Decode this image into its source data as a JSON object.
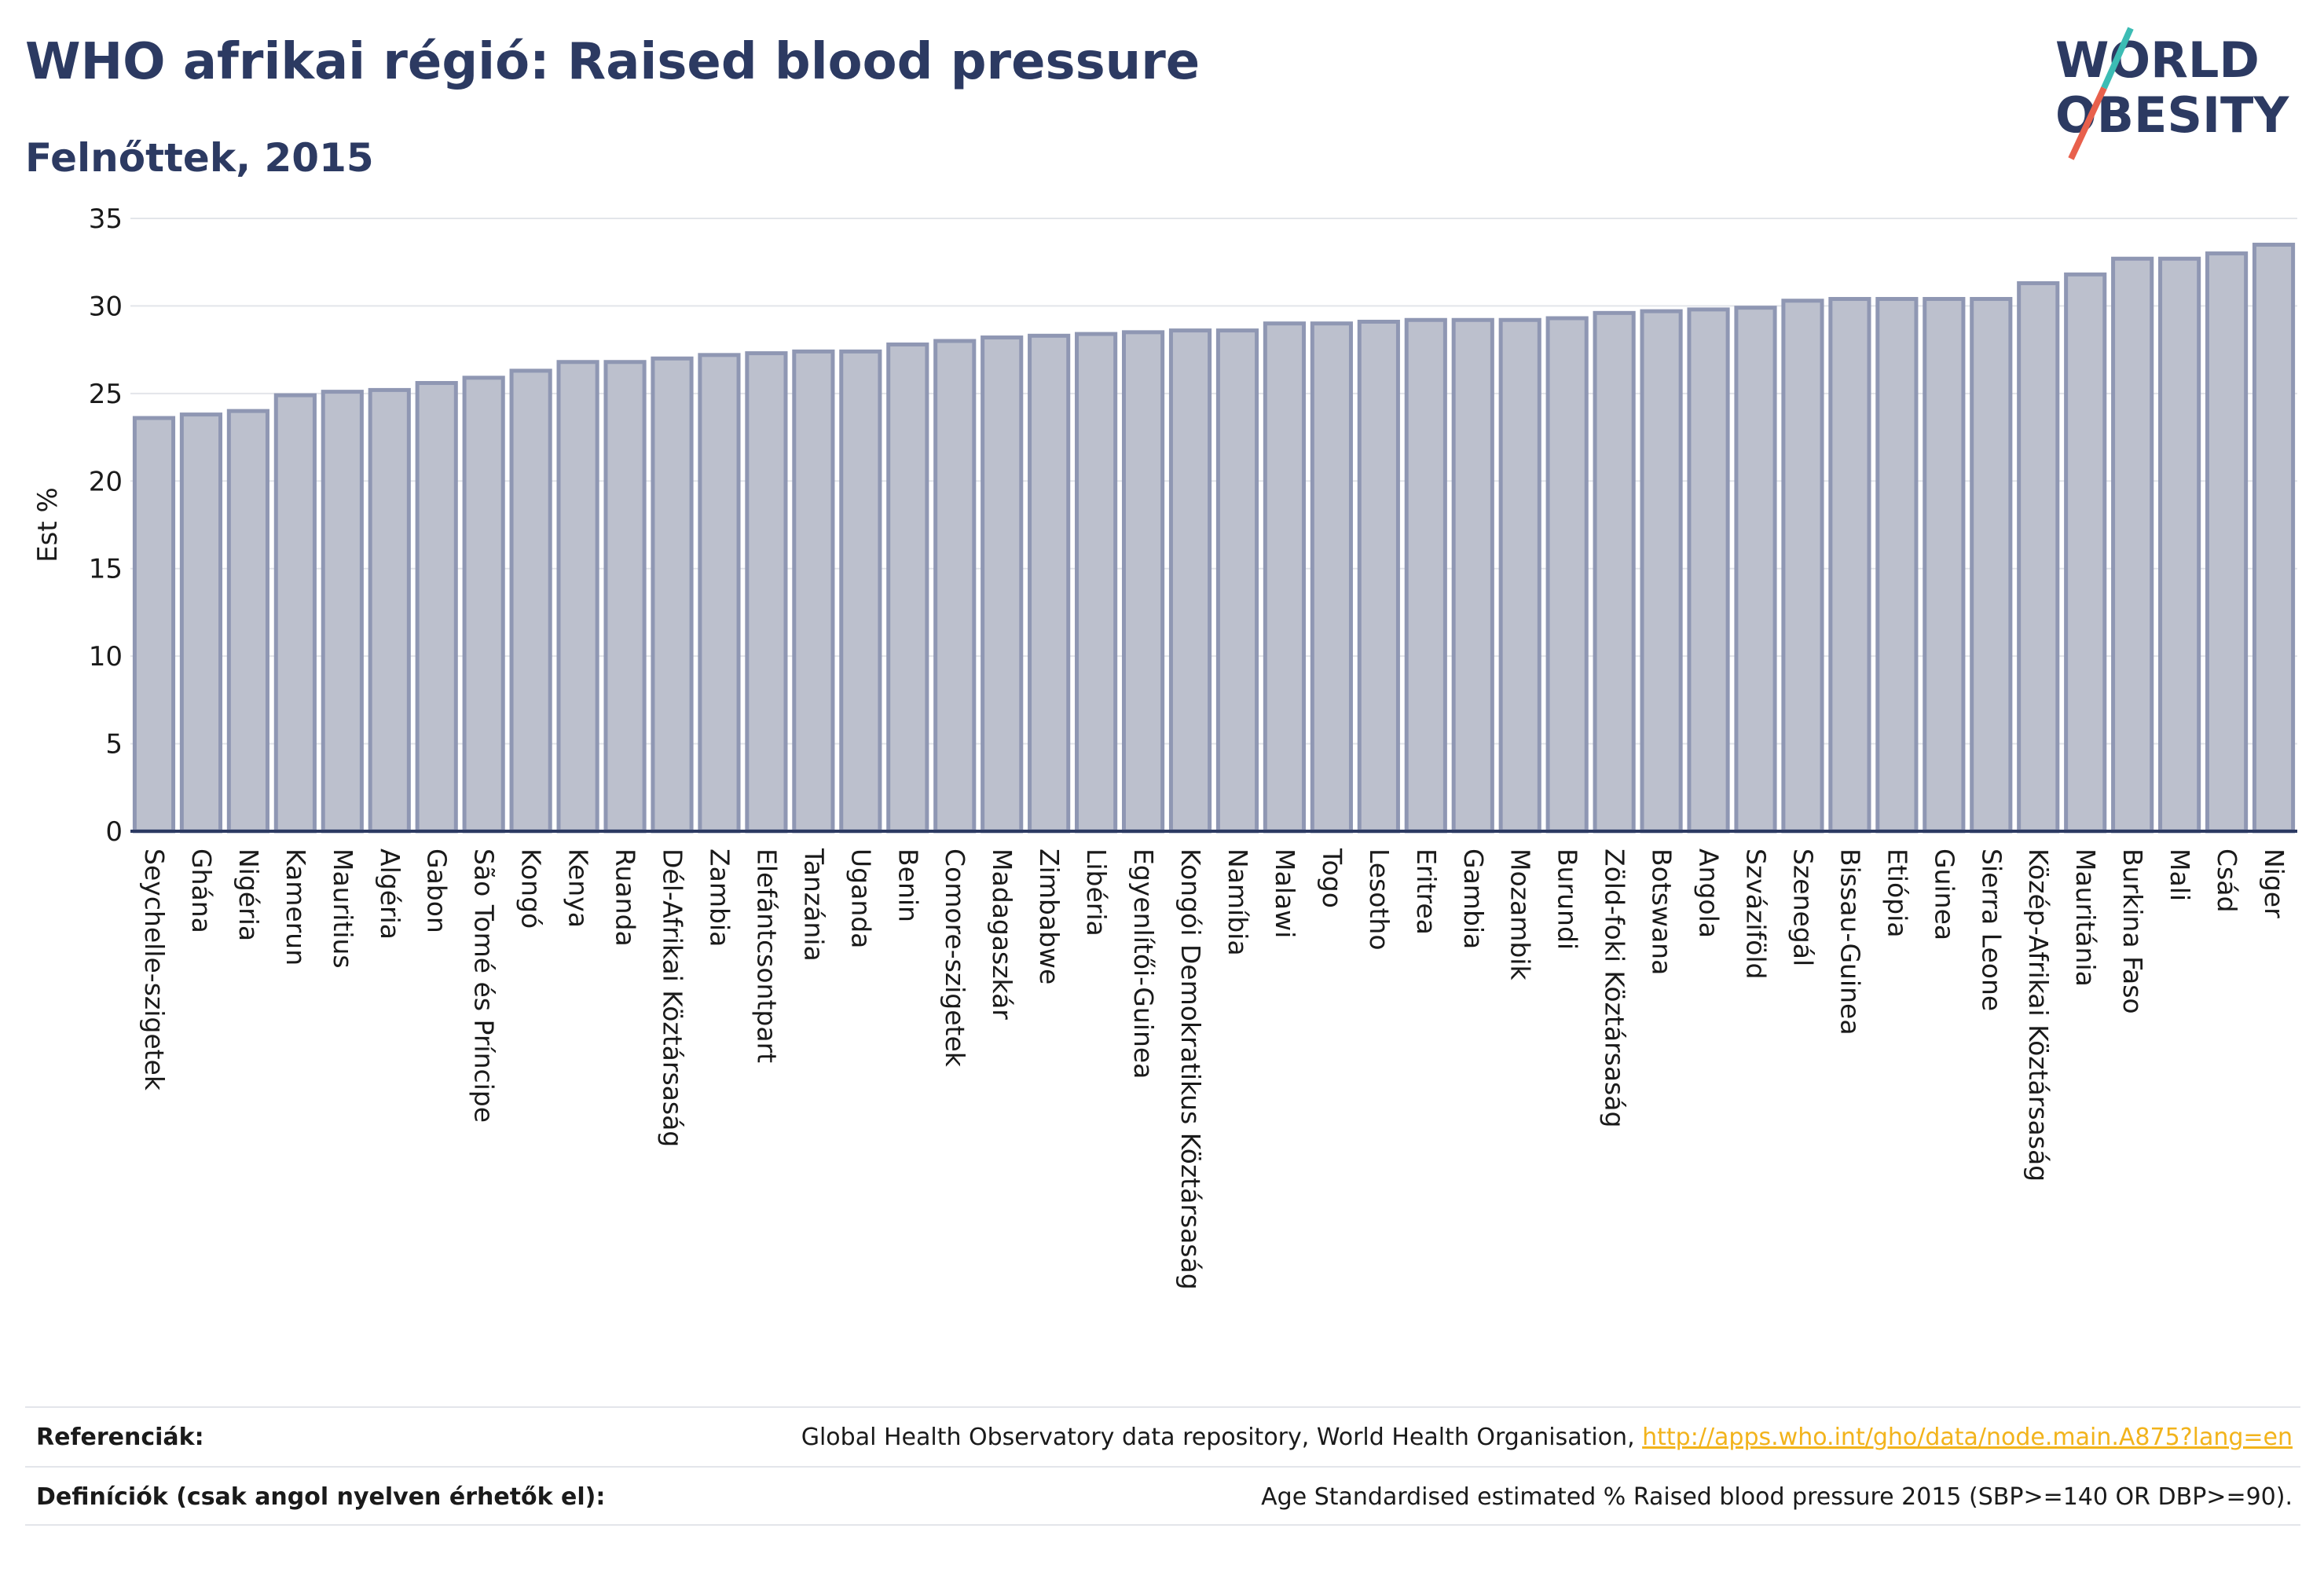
{
  "title": "WHO afrikai régió: Raised blood pressure",
  "subtitle": "Felnőttek, 2015",
  "logo": {
    "line1": "WORLD",
    "line2": "OBESITY"
  },
  "references": {
    "key": "Referenciák:",
    "text": "Global Health Observatory data repository, World Health Organisation, ",
    "link": "http://apps.who.int/gho/data/node.main.A875?lang=en"
  },
  "definitions": {
    "key": "Definíciók (csak angol nyelven érhetők el):",
    "text": "Age Standardised estimated % Raised blood pressure 2015 (SBP>=140 OR DBP>=90)."
  },
  "colors": {
    "title": "#2c3a62",
    "bar_fill": "#bcc0cd",
    "bar_stroke": "#8f97b3",
    "axis": "#2c3a62",
    "grid": "#e3e5ea",
    "logo_teal": "#3cbcb4",
    "logo_red": "#e8604c",
    "link": "#f2b31b"
  },
  "chart_data": {
    "type": "bar",
    "ylabel": "Est %",
    "ylim": [
      0,
      35
    ],
    "yticks": [
      0,
      5,
      10,
      15,
      20,
      25,
      30,
      35
    ],
    "grid": true,
    "categories": [
      "Seychelle-szigetek",
      "Ghána",
      "Nigéria",
      "Kamerun",
      "Mauritius",
      "Algéria",
      "Gabon",
      "São Tomé és Príncipe",
      "Kongó",
      "Kenya",
      "Ruanda",
      "Dél-Afrikai Köztársaság",
      "Zambia",
      "Elefántcsontpart",
      "Tanzánia",
      "Uganda",
      "Benin",
      "Comore-szigetek",
      "Madagaszkár",
      "Zimbabwe",
      "Libéria",
      "Egyenlítői-Guinea",
      "Kongói Demokratikus Köztársaság",
      "Namíbia",
      "Malawi",
      "Togo",
      "Lesotho",
      "Eritrea",
      "Gambia",
      "Mozambik",
      "Burundi",
      "Zöld-foki Köztársaság",
      "Botswana",
      "Angola",
      "Szváziföld",
      "Szenegál",
      "Bissau-Guinea",
      "Etiópia",
      "Guinea",
      "Sierra Leone",
      "Közép-Afrikai Köztársaság",
      "Mauritánia",
      "Burkina Faso",
      "Mali",
      "Csád",
      "Niger"
    ],
    "values": [
      23.6,
      23.8,
      24.0,
      24.9,
      25.1,
      25.2,
      25.6,
      25.9,
      26.3,
      26.8,
      26.8,
      27.0,
      27.2,
      27.3,
      27.4,
      27.4,
      27.8,
      28.0,
      28.2,
      28.3,
      28.4,
      28.5,
      28.6,
      28.6,
      29.0,
      29.0,
      29.1,
      29.2,
      29.2,
      29.2,
      29.3,
      29.6,
      29.7,
      29.8,
      29.9,
      30.3,
      30.4,
      30.4,
      30.4,
      30.4,
      31.3,
      31.8,
      32.7,
      32.7,
      33.0,
      33.5
    ]
  }
}
